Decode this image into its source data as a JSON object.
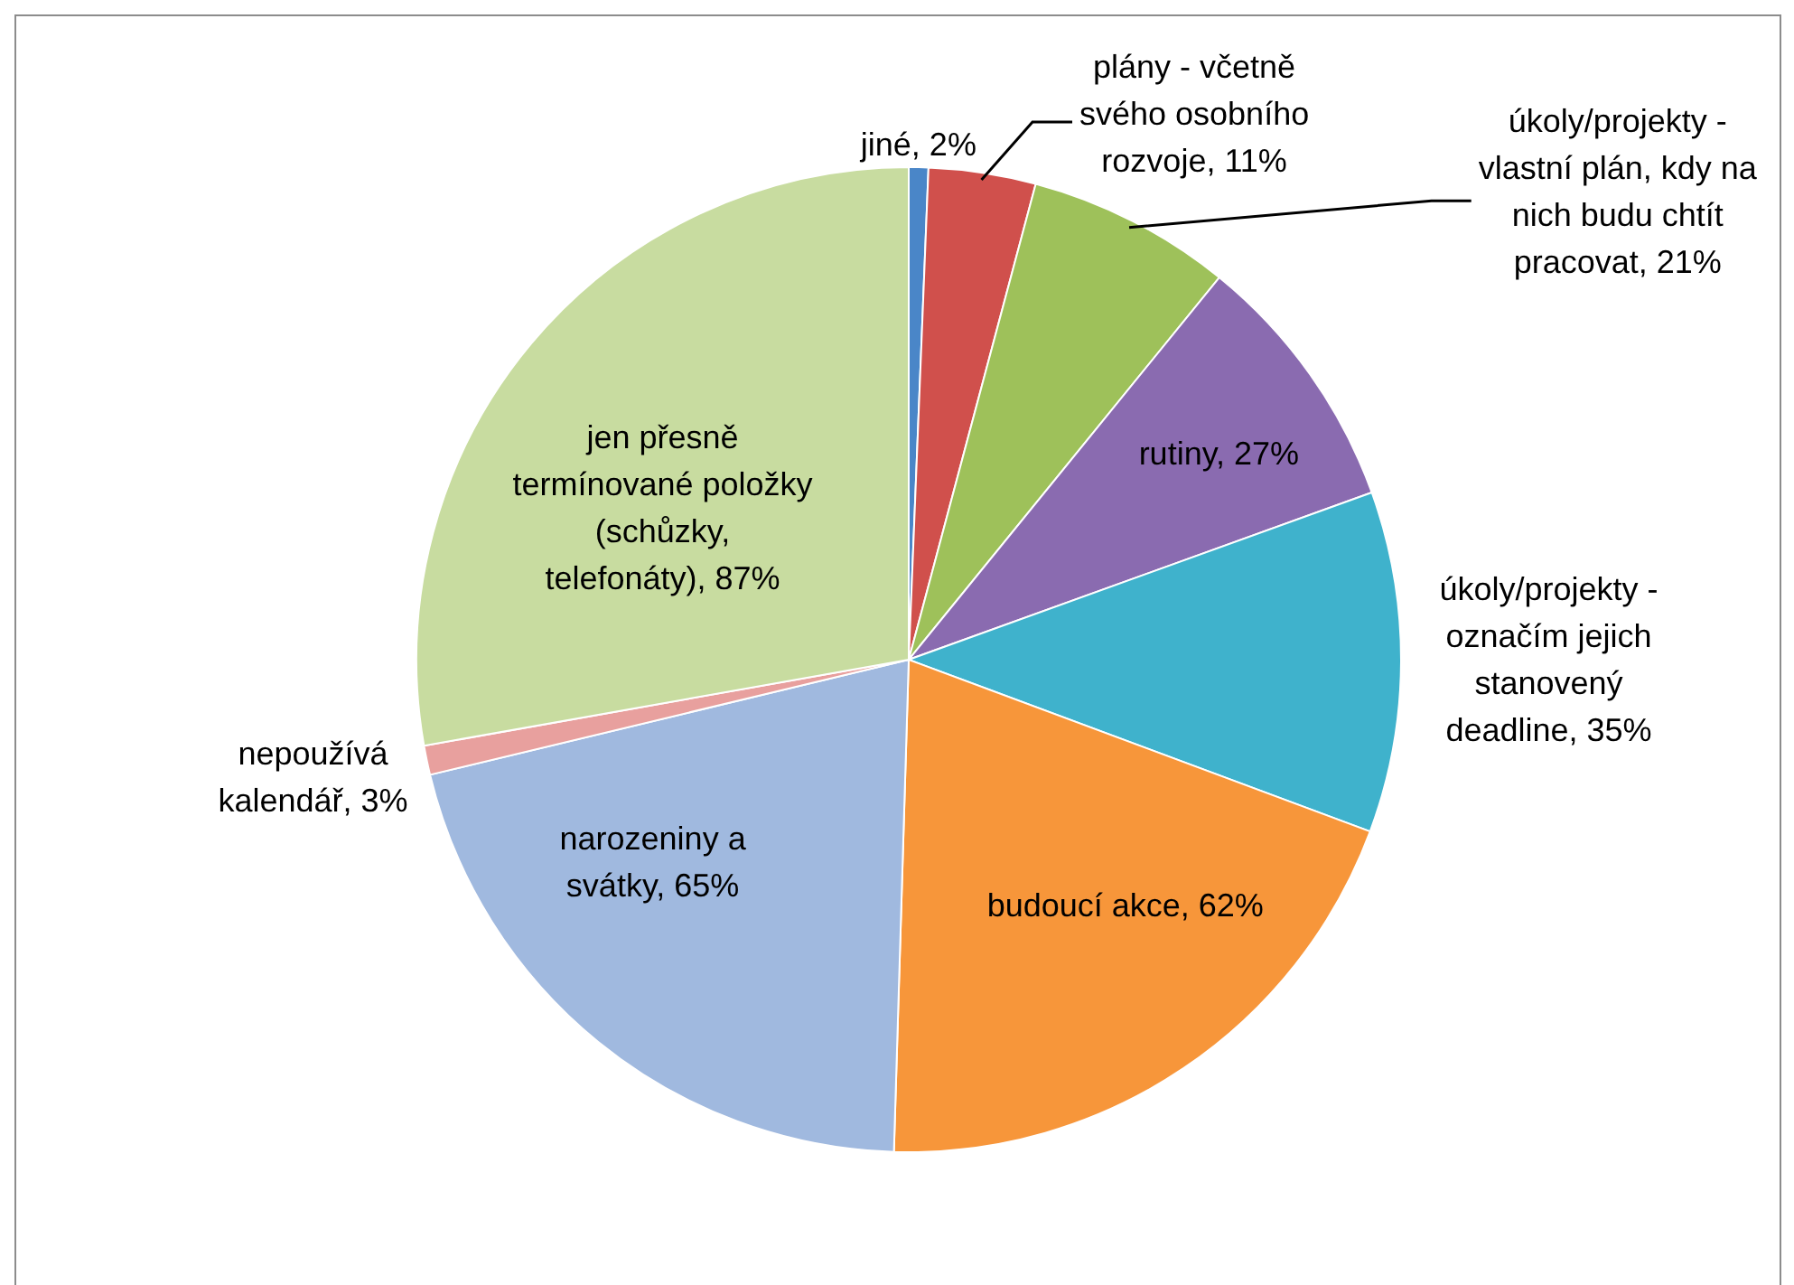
{
  "chart_data": {
    "type": "pie",
    "categories": [
      "jiné",
      "plány - včetně svého osobního rozvoje",
      "úkoly/projekty - vlastní plán, kdy na nich budu chtít pracovat",
      "rutiny",
      "úkoly/projekty - označím jejich stanovený deadline",
      "budoucí akce",
      "narozeniny a svátky",
      "nepoužívá kalendář",
      "jen přesně termínované položky (schůzky, telefonáty)"
    ],
    "values": [
      2,
      11,
      21,
      27,
      35,
      62,
      65,
      3,
      87
    ],
    "colors": [
      "#4a86c8",
      "#d0504c",
      "#9ec15a",
      "#8a6bb0",
      "#3fb2cc",
      "#f7963a",
      "#a0b9df",
      "#e8a09e",
      "#c8dca0"
    ],
    "value_labels": [
      "2%",
      "11%",
      "21%",
      "27%",
      "35%",
      "62%",
      "65%",
      "3%",
      "87%"
    ],
    "legend": false
  }
}
